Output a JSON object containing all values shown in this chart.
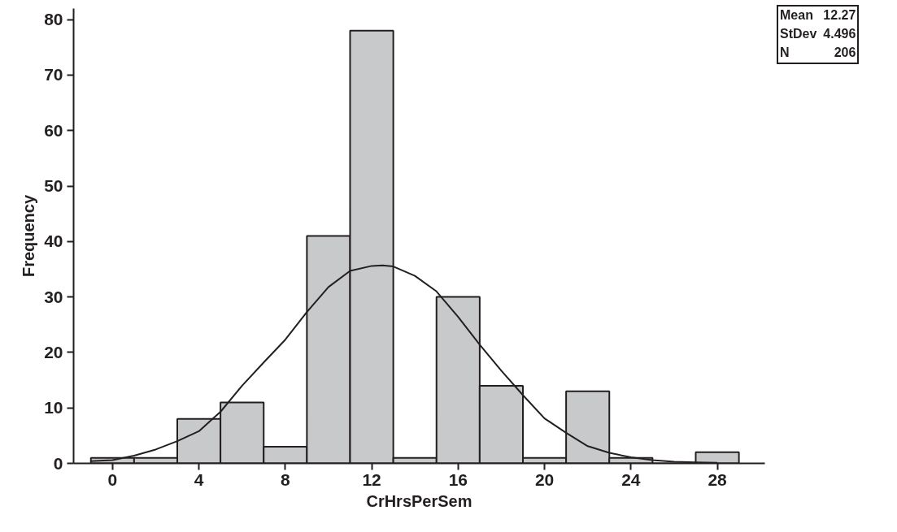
{
  "chart_data": {
    "type": "histogram",
    "xlabel": "CrHrsPerSem",
    "ylabel": "Frequency",
    "bins": [
      -1,
      1,
      3,
      5,
      7,
      9,
      11,
      13,
      15,
      17,
      19,
      21,
      23,
      25,
      27,
      29
    ],
    "values": [
      1,
      1,
      8,
      11,
      3,
      41,
      78,
      1,
      30,
      14,
      1,
      13,
      1,
      0,
      2
    ],
    "color": "#c8c9cb",
    "series": [
      {
        "type": "line",
        "color": "#231f20",
        "x": [
          -1,
          0,
          1,
          2,
          3,
          4,
          5,
          6,
          7,
          8,
          9,
          10,
          11,
          12,
          12.5,
          13,
          14,
          15,
          16,
          17,
          18,
          19,
          20,
          21,
          22,
          23,
          24,
          25,
          26,
          27,
          28
        ],
        "values": [
          0.4,
          0.6,
          1.4,
          2.5,
          4.0,
          5.8,
          9.3,
          14,
          18.2,
          22.3,
          27.3,
          31.8,
          34.7,
          35.6,
          35.7,
          35.5,
          33.8,
          31.0,
          26.4,
          21.4,
          16.7,
          12.3,
          8.1,
          5.5,
          3.1,
          1.9,
          1.1,
          0.6,
          0.3,
          0.2,
          0.1
        ]
      }
    ],
    "xlim": [
      -1.8,
      30.2
    ],
    "ylim": [
      0,
      82
    ],
    "xticks": [
      0,
      4,
      8,
      12,
      16,
      20,
      24,
      28
    ],
    "yticks": [
      0,
      10,
      20,
      30,
      40,
      50,
      60,
      70,
      80
    ],
    "grid": false,
    "annotations": [
      "Mean 12.27",
      "StDev 4.496",
      "N 206"
    ]
  }
}
